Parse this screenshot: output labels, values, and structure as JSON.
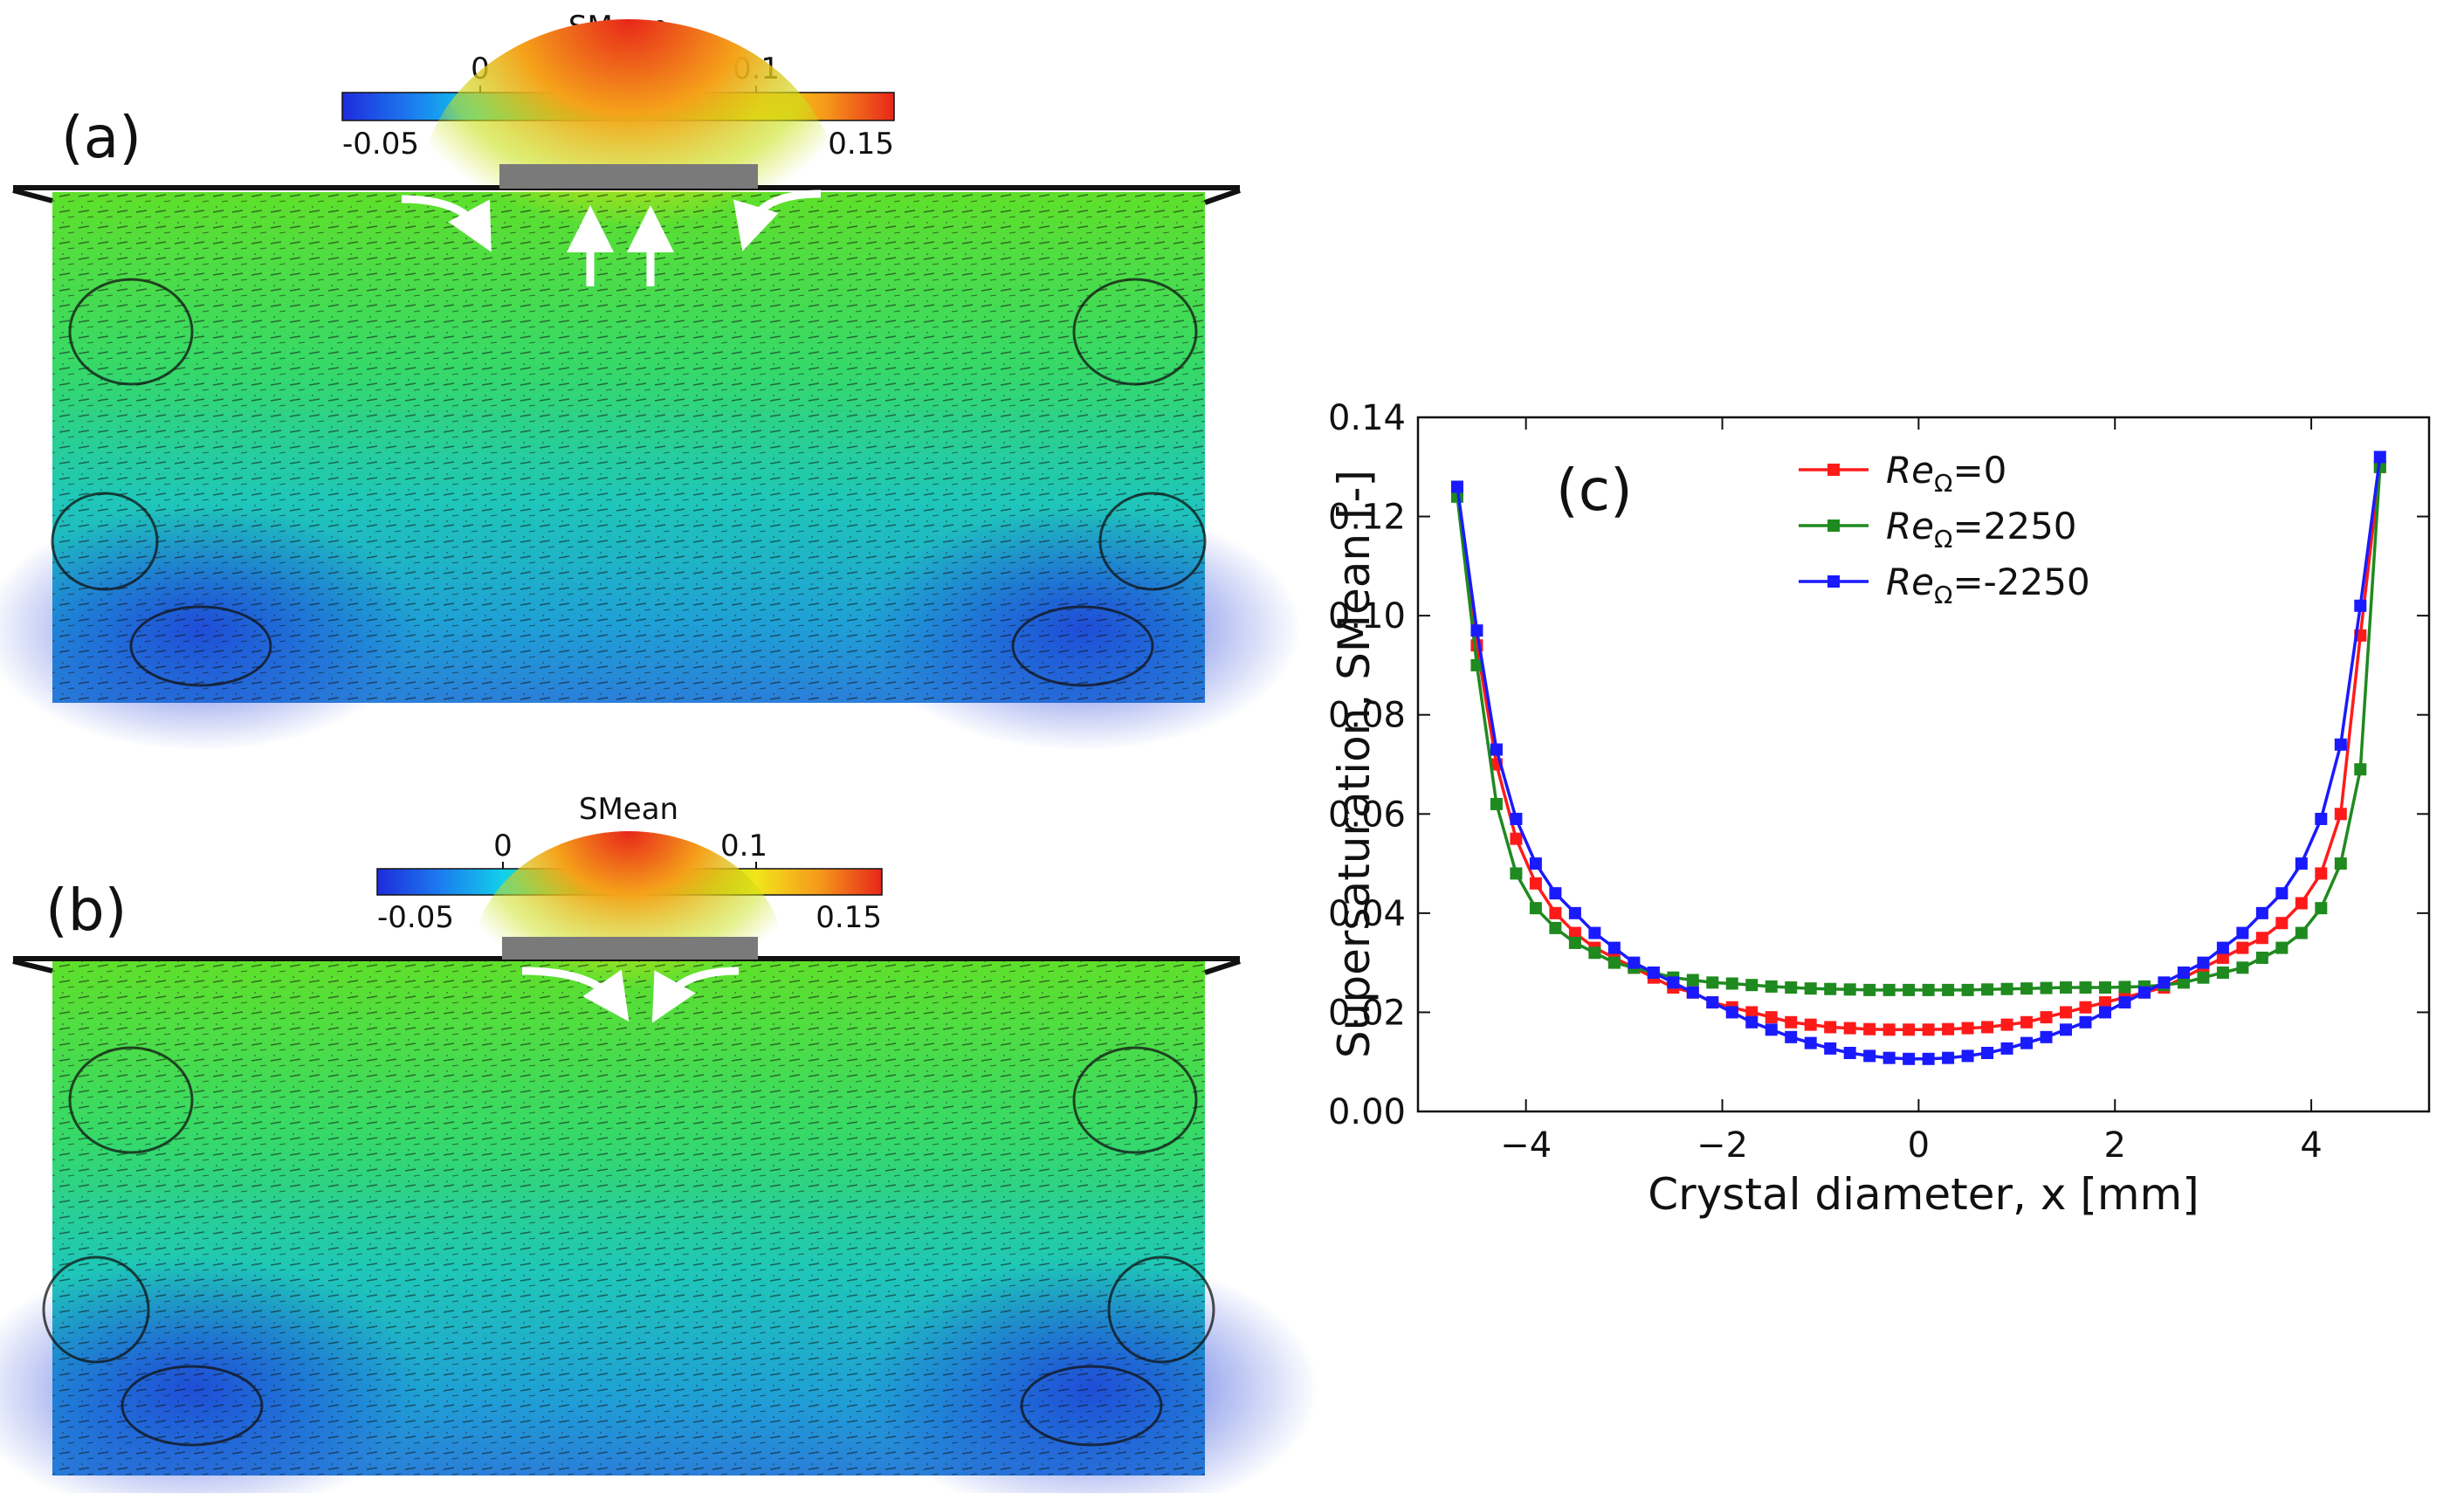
{
  "panels": {
    "a": {
      "label": "(a)",
      "colorbar": {
        "title": "SMean",
        "top_ticks": [
          "0",
          "0.1"
        ],
        "bottom_ticks": [
          "-0.05",
          "0.15"
        ],
        "colors": [
          "#1f2bdc",
          "#1b7cf0",
          "#12d0ea",
          "#1ee88a",
          "#22e020",
          "#9fe51c",
          "#f2e61a",
          "#f59a1a",
          "#e8261a"
        ]
      }
    },
    "b": {
      "label": "(b)",
      "colorbar": {
        "title": "SMean",
        "top_ticks": [
          "0",
          "0.1"
        ],
        "bottom_ticks": [
          "-0.05",
          "0.15"
        ],
        "colors": [
          "#1f2bdc",
          "#1b7cf0",
          "#12d0ea",
          "#1ee88a",
          "#22e020",
          "#9fe51c",
          "#f2e61a",
          "#f59a1a",
          "#e8261a"
        ]
      }
    }
  },
  "chart_data": {
    "type": "line",
    "panel_label": "(c)",
    "title": "",
    "xlabel": "Crystal diameter, x [mm]",
    "ylabel": "Supersaturation, SMean [-]",
    "xlim": [
      -5.1,
      5.2
    ],
    "ylim": [
      0.0,
      0.14
    ],
    "xticks": [
      -4,
      -2,
      0,
      2,
      4
    ],
    "xtick_labels": [
      "−4",
      "−2",
      "0",
      "2",
      "4"
    ],
    "yticks": [
      0.0,
      0.02,
      0.04,
      0.06,
      0.08,
      0.1,
      0.12,
      0.14
    ],
    "ytick_labels": [
      "0.00",
      "0.02",
      "0.04",
      "0.06",
      "0.08",
      "0.10",
      "0.12",
      "0.14"
    ],
    "legend_position": "top-right",
    "x": [
      -4.7,
      -4.5,
      -4.3,
      -4.1,
      -3.9,
      -3.7,
      -3.5,
      -3.3,
      -3.1,
      -2.9,
      -2.7,
      -2.5,
      -2.3,
      -2.1,
      -1.9,
      -1.7,
      -1.5,
      -1.3,
      -1.1,
      -0.9,
      -0.7,
      -0.5,
      -0.3,
      -0.1,
      0.1,
      0.3,
      0.5,
      0.7,
      0.9,
      1.1,
      1.3,
      1.5,
      1.7,
      1.9,
      2.1,
      2.3,
      2.5,
      2.7,
      2.9,
      3.1,
      3.3,
      3.5,
      3.7,
      3.9,
      4.1,
      4.3,
      4.5,
      4.7
    ],
    "series": [
      {
        "name_prefix": "Re",
        "name_sub": "Ω",
        "name_suffix": "=0",
        "color": "#ff1a1a",
        "values": [
          0.125,
          0.094,
          0.07,
          0.055,
          0.046,
          0.04,
          0.036,
          0.033,
          0.031,
          0.029,
          0.027,
          0.025,
          0.024,
          0.022,
          0.021,
          0.02,
          0.019,
          0.018,
          0.0175,
          0.017,
          0.0168,
          0.0166,
          0.0165,
          0.0165,
          0.0165,
          0.0166,
          0.0168,
          0.017,
          0.0175,
          0.018,
          0.019,
          0.02,
          0.021,
          0.022,
          0.023,
          0.024,
          0.025,
          0.027,
          0.029,
          0.031,
          0.033,
          0.035,
          0.038,
          0.042,
          0.048,
          0.06,
          0.096,
          0.13
        ]
      },
      {
        "name_prefix": "Re",
        "name_sub": "Ω",
        "name_suffix": "=2250",
        "color": "#1f8a1f",
        "values": [
          0.124,
          0.09,
          0.062,
          0.048,
          0.041,
          0.037,
          0.034,
          0.032,
          0.03,
          0.029,
          0.028,
          0.027,
          0.0265,
          0.026,
          0.0258,
          0.0255,
          0.0252,
          0.025,
          0.0248,
          0.0247,
          0.0246,
          0.0245,
          0.0245,
          0.0245,
          0.0245,
          0.0245,
          0.0245,
          0.0246,
          0.0247,
          0.0248,
          0.0249,
          0.025,
          0.025,
          0.025,
          0.0251,
          0.0252,
          0.0255,
          0.026,
          0.027,
          0.028,
          0.029,
          0.031,
          0.033,
          0.036,
          0.041,
          0.05,
          0.069,
          0.13
        ]
      },
      {
        "name_prefix": "Re",
        "name_sub": "Ω",
        "name_suffix": "=-2250",
        "color": "#1a1aff",
        "values": [
          0.126,
          0.097,
          0.073,
          0.059,
          0.05,
          0.044,
          0.04,
          0.036,
          0.033,
          0.03,
          0.028,
          0.026,
          0.024,
          0.022,
          0.02,
          0.018,
          0.0165,
          0.015,
          0.0138,
          0.0127,
          0.0118,
          0.0112,
          0.0108,
          0.0106,
          0.0106,
          0.0108,
          0.0112,
          0.0118,
          0.0127,
          0.0138,
          0.015,
          0.0165,
          0.018,
          0.02,
          0.022,
          0.024,
          0.026,
          0.028,
          0.03,
          0.033,
          0.036,
          0.04,
          0.044,
          0.05,
          0.059,
          0.074,
          0.102,
          0.132
        ]
      }
    ]
  }
}
